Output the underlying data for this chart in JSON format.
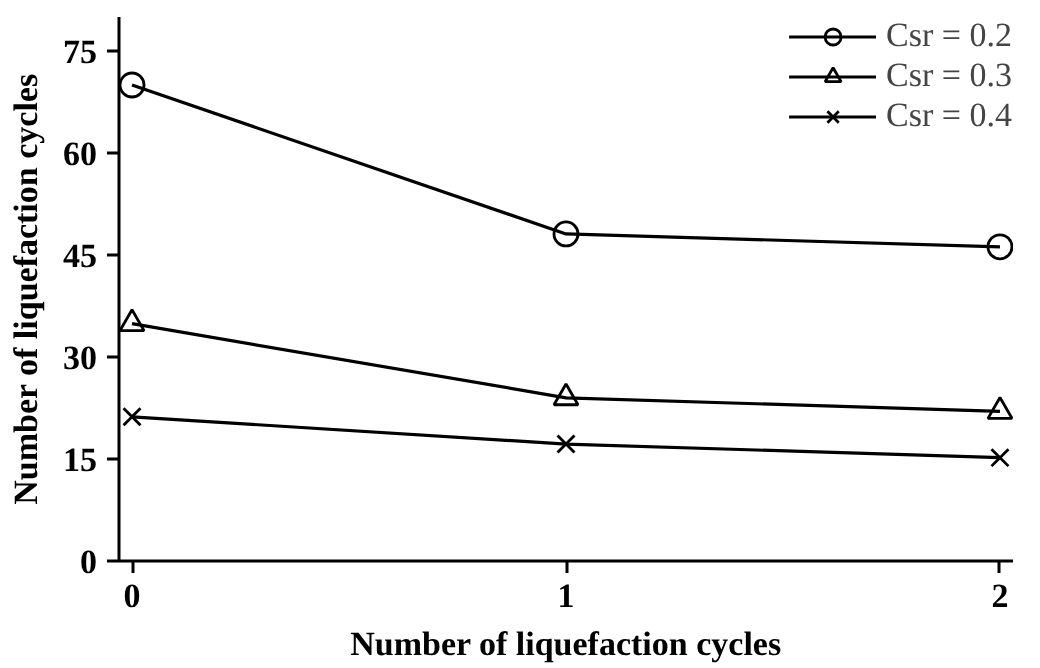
{
  "chart_data": {
    "type": "line",
    "xlabel": "Number of liquefaction cycles",
    "ylabel": "Number of liquefaction cycles",
    "x": [
      0,
      1,
      2
    ],
    "xlim": [
      -0.03,
      2.03
    ],
    "xticks": [
      0,
      1,
      2
    ],
    "ylim": [
      0,
      80
    ],
    "yticks": [
      0,
      15,
      30,
      45,
      60,
      75
    ],
    "grid": false,
    "legend": "top right",
    "line_style": "solid",
    "series": [
      {
        "name": "Csr = 0.2",
        "color": "#000000",
        "marker": "circle",
        "values": [
          70,
          48.1,
          46.2
        ]
      },
      {
        "name": "Csr = 0.3",
        "color": "#000000",
        "marker": "triangle",
        "values": [
          34.9,
          24,
          22
        ]
      },
      {
        "name": "Csr = 0.4",
        "color": "#000000",
        "marker": "cross",
        "values": [
          21.2,
          17.2,
          15.2
        ]
      }
    ]
  }
}
